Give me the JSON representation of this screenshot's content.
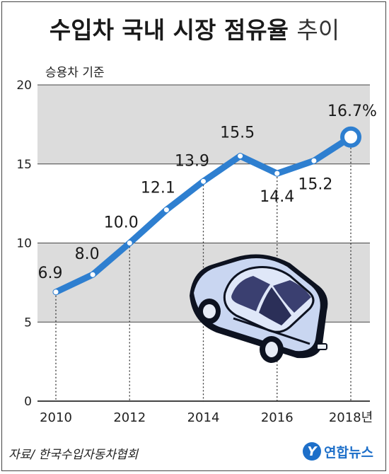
{
  "title_main": "수입차 국내 시장 점유율",
  "title_tail": "추이",
  "subtitle": "승용차 기준",
  "source": "자료/ 한국수입자동차협회",
  "brand": {
    "mark": "Y",
    "name": "연합뉴스"
  },
  "colors": {
    "line": "#2e7fd0",
    "band": "#dcdcdc",
    "grid": "#444444"
  },
  "chart_data": {
    "type": "line",
    "x": [
      2010,
      2011,
      2012,
      2013,
      2014,
      2015,
      2016,
      2017,
      2018
    ],
    "series": [
      {
        "values": [
          6.9,
          8.0,
          10.0,
          12.1,
          13.9,
          15.5,
          14.4,
          15.2,
          16.7
        ]
      }
    ],
    "data_labels": [
      "6.9",
      "8.0",
      "10.0",
      "12.1",
      "13.9",
      "15.5",
      "14.4",
      "15.2",
      "16.7%"
    ],
    "xticks": [
      2010,
      2012,
      2014,
      2016,
      2018
    ],
    "xtick_labels": [
      "2010",
      "2012",
      "2014",
      "2016",
      "2018년"
    ],
    "yticks": [
      0,
      5,
      10,
      15,
      20
    ],
    "ytick_labels": [
      "0",
      "5",
      "10",
      "15",
      "20"
    ],
    "ylim": [
      0,
      20
    ],
    "xlim": [
      2010,
      2018
    ],
    "bands": [
      [
        5,
        10
      ],
      [
        15,
        20
      ]
    ]
  }
}
